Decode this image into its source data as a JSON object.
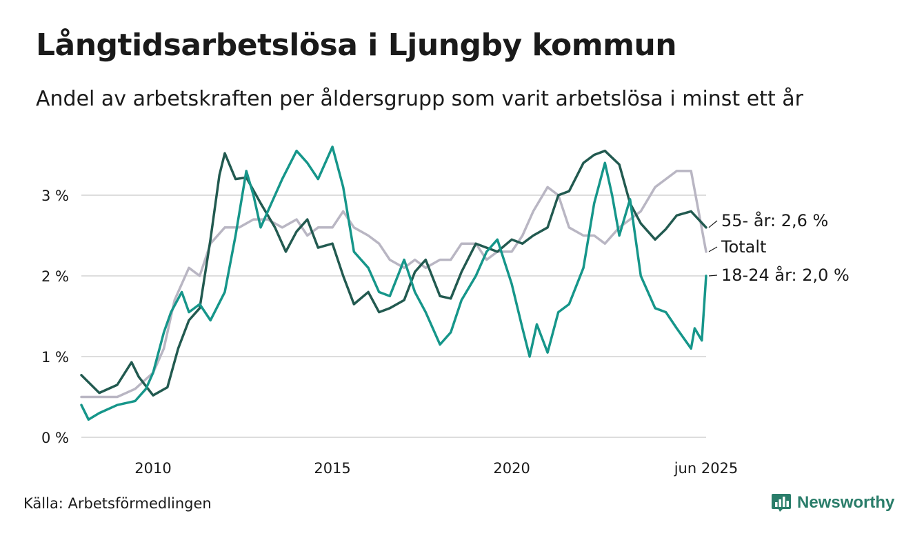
{
  "header": {
    "title": "Långtidsarbetslösa i Ljungby kommun",
    "subtitle": "Andel av arbetskraften per åldersgrupp som varit arbetslösa i minst ett år"
  },
  "footer": {
    "source": "Källa: Arbetsförmedlingen",
    "brand": "Newsworthy",
    "brand_color": "#2a7d6a"
  },
  "chart_data": {
    "type": "line",
    "title": "Långtidsarbetslösa i Ljungby kommun",
    "xlabel": "",
    "ylabel": "",
    "ylim": [
      0,
      3.6
    ],
    "xlim": [
      2008.0,
      2025.42
    ],
    "x_ticks": [
      {
        "value": 2010,
        "label": "2010"
      },
      {
        "value": 2015,
        "label": "2015"
      },
      {
        "value": 2020,
        "label": "2020"
      },
      {
        "value": 2025.42,
        "label": "jun 2025"
      }
    ],
    "y_ticks": [
      {
        "value": 0,
        "label": "0 %"
      },
      {
        "value": 1,
        "label": "1 %"
      },
      {
        "value": 2,
        "label": "2 %"
      },
      {
        "value": 3,
        "label": "3 %"
      }
    ],
    "grid": true,
    "legend": "direct labels at line ends",
    "series": [
      {
        "name": "Totalt",
        "end_label": "Totalt",
        "color": "#b9b6c3",
        "points": [
          [
            2008.0,
            0.5
          ],
          [
            2008.5,
            0.5
          ],
          [
            2009.0,
            0.5
          ],
          [
            2009.5,
            0.6
          ],
          [
            2010.0,
            0.8
          ],
          [
            2010.3,
            1.1
          ],
          [
            2010.6,
            1.7
          ],
          [
            2011.0,
            2.1
          ],
          [
            2011.3,
            2.0
          ],
          [
            2011.6,
            2.4
          ],
          [
            2012.0,
            2.6
          ],
          [
            2012.4,
            2.6
          ],
          [
            2012.8,
            2.7
          ],
          [
            2013.2,
            2.7
          ],
          [
            2013.6,
            2.6
          ],
          [
            2014.0,
            2.7
          ],
          [
            2014.3,
            2.5
          ],
          [
            2014.6,
            2.6
          ],
          [
            2015.0,
            2.6
          ],
          [
            2015.3,
            2.8
          ],
          [
            2015.6,
            2.6
          ],
          [
            2016.0,
            2.5
          ],
          [
            2016.3,
            2.4
          ],
          [
            2016.6,
            2.2
          ],
          [
            2017.0,
            2.1
          ],
          [
            2017.3,
            2.2
          ],
          [
            2017.6,
            2.1
          ],
          [
            2018.0,
            2.2
          ],
          [
            2018.3,
            2.2
          ],
          [
            2018.6,
            2.4
          ],
          [
            2019.0,
            2.4
          ],
          [
            2019.3,
            2.2
          ],
          [
            2019.6,
            2.3
          ],
          [
            2020.0,
            2.3
          ],
          [
            2020.3,
            2.5
          ],
          [
            2020.6,
            2.8
          ],
          [
            2021.0,
            3.1
          ],
          [
            2021.3,
            3.0
          ],
          [
            2021.6,
            2.6
          ],
          [
            2022.0,
            2.5
          ],
          [
            2022.3,
            2.5
          ],
          [
            2022.6,
            2.4
          ],
          [
            2023.0,
            2.6
          ],
          [
            2023.3,
            2.7
          ],
          [
            2023.6,
            2.8
          ],
          [
            2024.0,
            3.1
          ],
          [
            2024.3,
            3.2
          ],
          [
            2024.6,
            3.3
          ],
          [
            2025.0,
            3.3
          ],
          [
            2025.42,
            2.3
          ]
        ]
      },
      {
        "name": "55- år",
        "end_label": "55- år: 2,6 %",
        "color": "#225a50",
        "points": [
          [
            2008.0,
            0.77
          ],
          [
            2008.5,
            0.55
          ],
          [
            2009.0,
            0.65
          ],
          [
            2009.4,
            0.93
          ],
          [
            2009.6,
            0.75
          ],
          [
            2010.0,
            0.52
          ],
          [
            2010.4,
            0.62
          ],
          [
            2010.7,
            1.1
          ],
          [
            2011.0,
            1.45
          ],
          [
            2011.3,
            1.6
          ],
          [
            2011.6,
            2.45
          ],
          [
            2011.85,
            3.25
          ],
          [
            2012.0,
            3.52
          ],
          [
            2012.3,
            3.2
          ],
          [
            2012.6,
            3.22
          ],
          [
            2013.0,
            2.9
          ],
          [
            2013.4,
            2.6
          ],
          [
            2013.7,
            2.3
          ],
          [
            2014.0,
            2.55
          ],
          [
            2014.3,
            2.7
          ],
          [
            2014.6,
            2.35
          ],
          [
            2015.0,
            2.4
          ],
          [
            2015.3,
            2.0
          ],
          [
            2015.6,
            1.65
          ],
          [
            2016.0,
            1.8
          ],
          [
            2016.3,
            1.55
          ],
          [
            2016.6,
            1.6
          ],
          [
            2017.0,
            1.7
          ],
          [
            2017.3,
            2.05
          ],
          [
            2017.6,
            2.2
          ],
          [
            2018.0,
            1.75
          ],
          [
            2018.3,
            1.72
          ],
          [
            2018.6,
            2.05
          ],
          [
            2019.0,
            2.4
          ],
          [
            2019.3,
            2.35
          ],
          [
            2019.6,
            2.3
          ],
          [
            2020.0,
            2.45
          ],
          [
            2020.3,
            2.4
          ],
          [
            2020.6,
            2.5
          ],
          [
            2021.0,
            2.6
          ],
          [
            2021.3,
            3.0
          ],
          [
            2021.6,
            3.05
          ],
          [
            2022.0,
            3.4
          ],
          [
            2022.3,
            3.5
          ],
          [
            2022.6,
            3.55
          ],
          [
            2023.0,
            3.38
          ],
          [
            2023.3,
            2.9
          ],
          [
            2023.6,
            2.65
          ],
          [
            2024.0,
            2.45
          ],
          [
            2024.3,
            2.58
          ],
          [
            2024.6,
            2.75
          ],
          [
            2025.0,
            2.8
          ],
          [
            2025.42,
            2.6
          ]
        ]
      },
      {
        "name": "18-24 år",
        "end_label": "18-24 år: 2,0 %",
        "color": "#16968a",
        "points": [
          [
            2008.0,
            0.4
          ],
          [
            2008.2,
            0.22
          ],
          [
            2008.5,
            0.3
          ],
          [
            2009.0,
            0.4
          ],
          [
            2009.5,
            0.45
          ],
          [
            2009.8,
            0.6
          ],
          [
            2010.0,
            0.8
          ],
          [
            2010.3,
            1.3
          ],
          [
            2010.5,
            1.55
          ],
          [
            2010.8,
            1.8
          ],
          [
            2011.0,
            1.55
          ],
          [
            2011.3,
            1.65
          ],
          [
            2011.6,
            1.45
          ],
          [
            2012.0,
            1.8
          ],
          [
            2012.3,
            2.5
          ],
          [
            2012.6,
            3.3
          ],
          [
            2012.8,
            3.0
          ],
          [
            2013.0,
            2.6
          ],
          [
            2013.3,
            2.9
          ],
          [
            2013.6,
            3.2
          ],
          [
            2014.0,
            3.55
          ],
          [
            2014.3,
            3.4
          ],
          [
            2014.6,
            3.2
          ],
          [
            2015.0,
            3.6
          ],
          [
            2015.3,
            3.1
          ],
          [
            2015.6,
            2.3
          ],
          [
            2016.0,
            2.1
          ],
          [
            2016.3,
            1.8
          ],
          [
            2016.6,
            1.75
          ],
          [
            2017.0,
            2.2
          ],
          [
            2017.3,
            1.8
          ],
          [
            2017.6,
            1.55
          ],
          [
            2018.0,
            1.15
          ],
          [
            2018.3,
            1.3
          ],
          [
            2018.6,
            1.7
          ],
          [
            2019.0,
            2.0
          ],
          [
            2019.3,
            2.3
          ],
          [
            2019.6,
            2.45
          ],
          [
            2020.0,
            1.9
          ],
          [
            2020.3,
            1.35
          ],
          [
            2020.5,
            1.0
          ],
          [
            2020.7,
            1.4
          ],
          [
            2021.0,
            1.05
          ],
          [
            2021.3,
            1.55
          ],
          [
            2021.6,
            1.65
          ],
          [
            2022.0,
            2.1
          ],
          [
            2022.3,
            2.9
          ],
          [
            2022.6,
            3.4
          ],
          [
            2022.8,
            3.0
          ],
          [
            2023.0,
            2.5
          ],
          [
            2023.3,
            2.95
          ],
          [
            2023.6,
            2.0
          ],
          [
            2024.0,
            1.6
          ],
          [
            2024.3,
            1.55
          ],
          [
            2024.6,
            1.35
          ],
          [
            2025.0,
            1.1
          ],
          [
            2025.1,
            1.35
          ],
          [
            2025.3,
            1.2
          ],
          [
            2025.42,
            2.0
          ]
        ]
      }
    ]
  }
}
